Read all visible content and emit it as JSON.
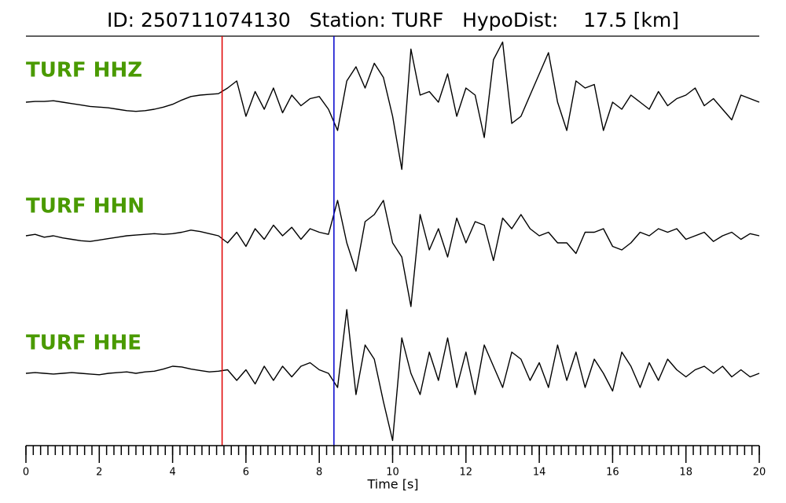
{
  "chart_data": {
    "type": "line",
    "title": "ID: 250711074130   Station: TURF   HypoDist:    17.5 [km]",
    "xlabel": "Time [s]",
    "xlim": [
      0,
      20
    ],
    "xticks": [
      0,
      2,
      4,
      6,
      8,
      10,
      12,
      14,
      16,
      18,
      20
    ],
    "xminor_step": 0.2,
    "ylim": [
      -1,
      1
    ],
    "label_color": "#4a9a00",
    "markers": [
      {
        "x": 5.35,
        "color": "#e00000"
      },
      {
        "x": 8.4,
        "color": "#0000cc"
      }
    ],
    "x": [
      0,
      0.25,
      0.5,
      0.75,
      1,
      1.25,
      1.5,
      1.75,
      2,
      2.25,
      2.5,
      2.75,
      3,
      3.25,
      3.5,
      3.75,
      4,
      4.25,
      4.5,
      4.75,
      5,
      5.25,
      5.5,
      5.75,
      6,
      6.25,
      6.5,
      6.75,
      7,
      7.25,
      7.5,
      7.75,
      8,
      8.25,
      8.5,
      8.75,
      9,
      9.25,
      9.5,
      9.75,
      10,
      10.25,
      10.5,
      10.75,
      11,
      11.25,
      11.5,
      11.75,
      12,
      12.25,
      12.5,
      12.75,
      13,
      13.25,
      13.5,
      13.75,
      14,
      14.25,
      14.5,
      14.75,
      15,
      15.25,
      15.5,
      15.75,
      16,
      16.25,
      16.5,
      16.75,
      17,
      17.25,
      17.5,
      17.75,
      18,
      18.25,
      18.5,
      18.75,
      19,
      19.25,
      19.5,
      19.75,
      20
    ],
    "series": [
      {
        "name": "TURF HHZ",
        "color": "#000000",
        "values": [
          0,
          0.01,
          0.01,
          0.02,
          0,
          -0.02,
          -0.04,
          -0.06,
          -0.07,
          -0.08,
          -0.1,
          -0.12,
          -0.13,
          -0.12,
          -0.1,
          -0.07,
          -0.03,
          0.03,
          0.08,
          0.1,
          0.11,
          0.12,
          0.2,
          0.3,
          -0.2,
          0.15,
          -0.1,
          0.2,
          -0.15,
          0.1,
          -0.05,
          0.05,
          0.08,
          -0.1,
          -0.4,
          0.3,
          0.5,
          0.2,
          0.55,
          0.35,
          -0.2,
          -0.95,
          0.75,
          0.1,
          0.15,
          0,
          0.4,
          -0.2,
          0.2,
          0.1,
          -0.5,
          0.6,
          0.85,
          -0.3,
          -0.2,
          0.1,
          0.4,
          0.7,
          0,
          -0.4,
          0.3,
          0.2,
          0.25,
          -0.4,
          0,
          -0.1,
          0.1,
          0,
          -0.1,
          0.15,
          -0.05,
          0.05,
          0.1,
          0.2,
          -0.05,
          0.05,
          -0.1,
          -0.25,
          0.1,
          0.05,
          0
        ]
      },
      {
        "name": "TURF HHN",
        "color": "#000000",
        "values": [
          0,
          0.02,
          -0.02,
          0,
          -0.03,
          -0.05,
          -0.07,
          -0.08,
          -0.06,
          -0.04,
          -0.02,
          0,
          0.01,
          0.02,
          0.03,
          0.02,
          0.03,
          0.05,
          0.08,
          0.06,
          0.03,
          0,
          -0.1,
          0.05,
          -0.15,
          0.1,
          -0.05,
          0.15,
          0,
          0.12,
          -0.05,
          0.1,
          0.05,
          0.02,
          0.5,
          -0.1,
          -0.5,
          0.2,
          0.3,
          0.5,
          -0.1,
          -0.3,
          -1.0,
          0.3,
          -0.2,
          0.1,
          -0.3,
          0.25,
          -0.1,
          0.2,
          0.15,
          -0.35,
          0.25,
          0.1,
          0.3,
          0.1,
          0,
          0.05,
          -0.1,
          -0.1,
          -0.25,
          0.05,
          0.05,
          0.1,
          -0.15,
          -0.2,
          -0.1,
          0.05,
          0,
          0.1,
          0.05,
          0.1,
          -0.05,
          0,
          0.05,
          -0.08,
          0,
          0.05,
          -0.05,
          0.03,
          0
        ]
      },
      {
        "name": "TURF HHE",
        "color": "#000000",
        "values": [
          0,
          0.01,
          0,
          -0.01,
          0,
          0.01,
          0,
          -0.01,
          -0.02,
          0,
          0.01,
          0.02,
          0,
          0.02,
          0.03,
          0.06,
          0.1,
          0.09,
          0.06,
          0.04,
          0.02,
          0.03,
          0.05,
          -0.1,
          0.05,
          -0.15,
          0.1,
          -0.1,
          0.1,
          -0.05,
          0.1,
          0.15,
          0.05,
          0,
          -0.2,
          0.9,
          -0.3,
          0.4,
          0.2,
          -0.4,
          -0.95,
          0.5,
          0,
          -0.3,
          0.3,
          -0.1,
          0.5,
          -0.2,
          0.3,
          -0.3,
          0.4,
          0.1,
          -0.2,
          0.3,
          0.2,
          -0.1,
          0.15,
          -0.2,
          0.4,
          -0.1,
          0.3,
          -0.2,
          0.2,
          0,
          -0.25,
          0.3,
          0.1,
          -0.2,
          0.15,
          -0.1,
          0.2,
          0.05,
          -0.05,
          0.05,
          0.1,
          0,
          0.1,
          -0.05,
          0.05,
          -0.05,
          0
        ]
      }
    ]
  }
}
